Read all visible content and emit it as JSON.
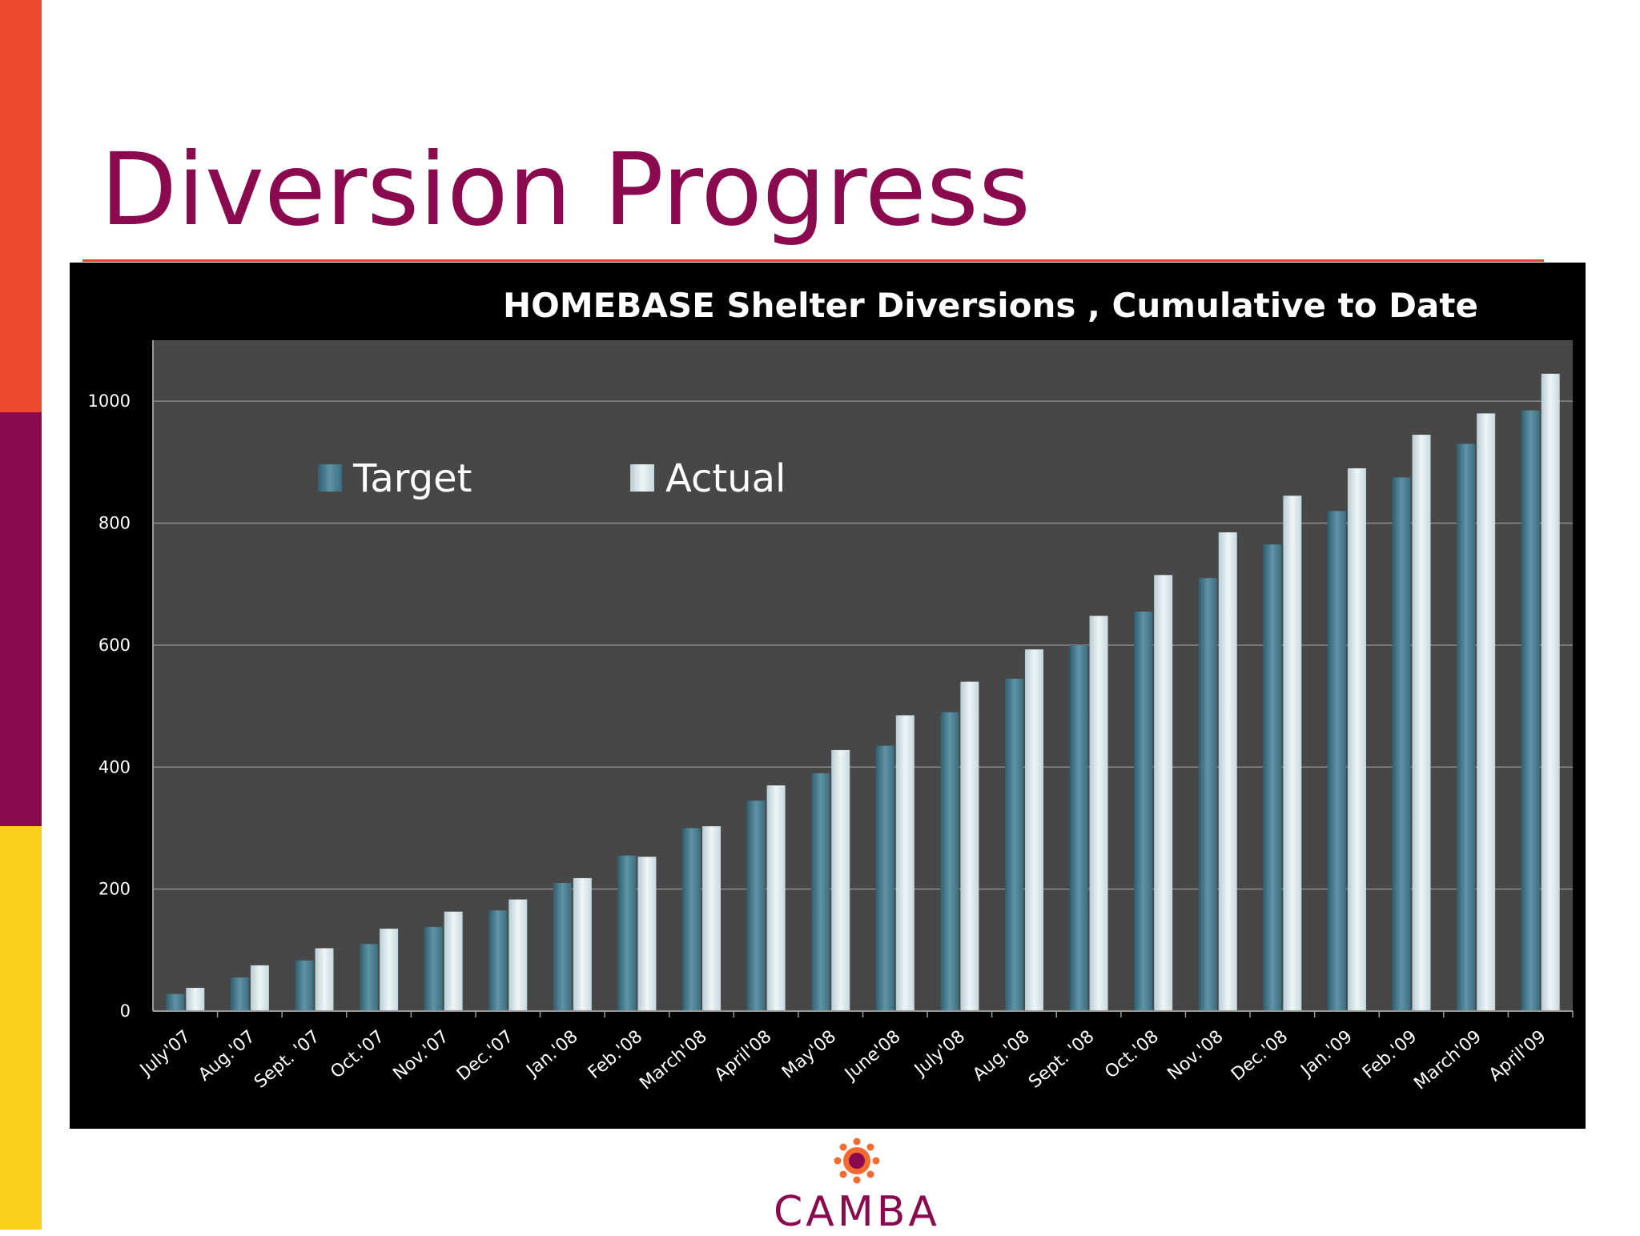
{
  "slide": {
    "title": "Diversion Progress",
    "logo_text": "CAMBA",
    "colors": {
      "title": "#8b0a4f",
      "stripe_top": "#f04a2e",
      "stripe_mid": "#8b0a4f",
      "stripe_bottom": "#f9d01b"
    }
  },
  "chart_data": {
    "type": "bar",
    "title": "HOMEBASE Shelter Diversions ,  Cumulative to Date",
    "categories": [
      "July'07",
      "Aug.'07",
      "Sept. '07",
      "Oct.'07",
      "Nov.'07",
      "Dec.'07",
      "Jan.'08",
      "Feb.'08",
      "March'08",
      "April'08",
      "May'08",
      "June'08",
      "July'08",
      "Aug.'08",
      "Sept. '08",
      "Oct.'08",
      "Nov.'08",
      "Dec.'08",
      "Jan.'09",
      "Feb.'09",
      "March'09",
      "April'09"
    ],
    "series": [
      {
        "name": "Target",
        "color": "#4d7f90",
        "values": [
          28,
          55,
          83,
          110,
          138,
          165,
          210,
          255,
          300,
          345,
          390,
          435,
          490,
          545,
          600,
          655,
          710,
          765,
          820,
          875,
          930,
          985
        ]
      },
      {
        "name": "Actual",
        "color": "#d3e3e8",
        "values": [
          38,
          75,
          103,
          135,
          163,
          183,
          218,
          253,
          303,
          370,
          428,
          485,
          540,
          593,
          648,
          715,
          785,
          845,
          890,
          945,
          980,
          1045
        ]
      }
    ],
    "ylim": [
      0,
      1100
    ],
    "yticks": [
      0,
      200,
      400,
      600,
      800,
      1000
    ],
    "grid": true,
    "legend": "top-left",
    "background": "#474747"
  }
}
